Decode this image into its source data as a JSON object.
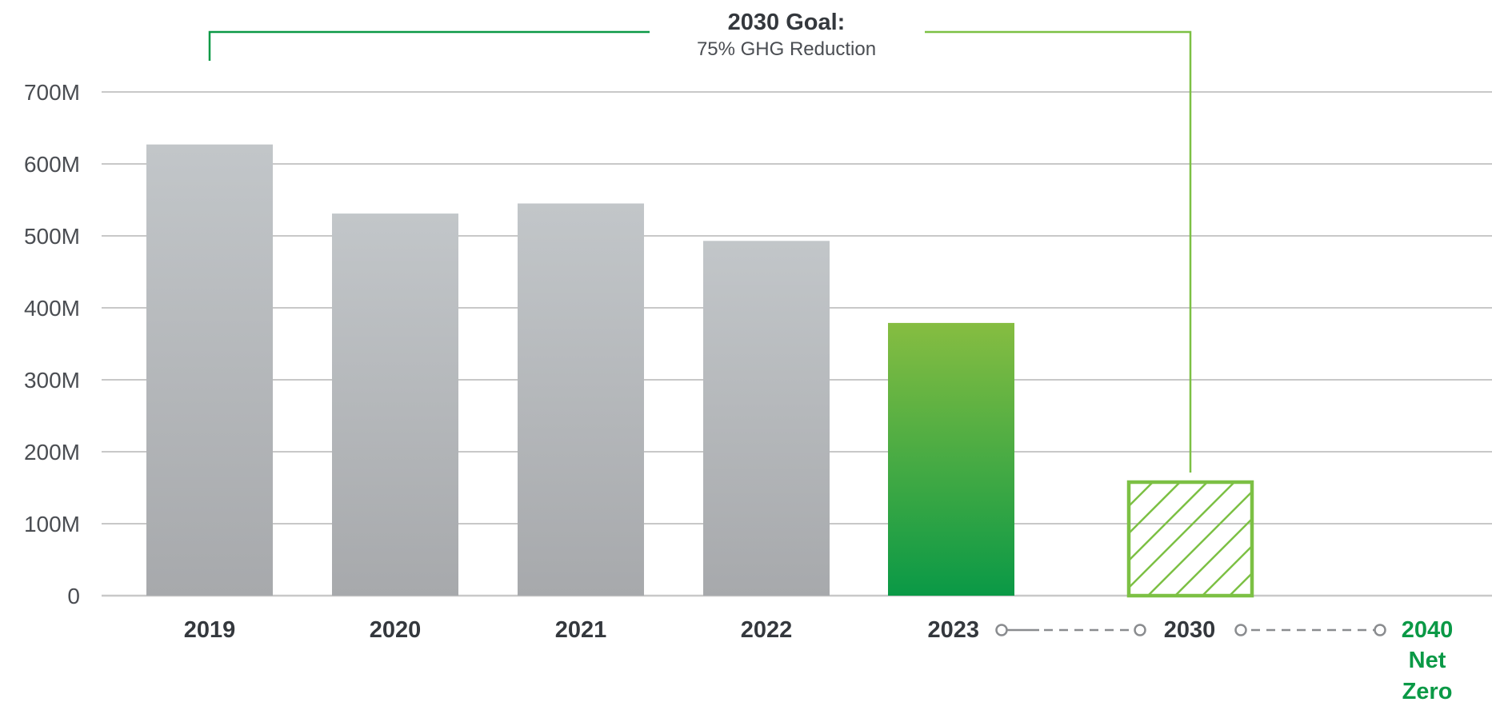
{
  "chart_data": {
    "type": "bar",
    "categories": [
      "2019",
      "2020",
      "2021",
      "2022",
      "2023",
      "2030"
    ],
    "values": [
      627000000,
      531000000,
      545000000,
      493000000,
      379000000,
      160000000
    ],
    "ylim": [
      0,
      700000000
    ],
    "yticks": [
      0,
      100000000,
      200000000,
      300000000,
      400000000,
      500000000,
      600000000,
      700000000
    ],
    "ytick_labels": [
      "0",
      "100M",
      "200M",
      "300M",
      "400M",
      "500M",
      "600M",
      "700M"
    ],
    "grid": true,
    "bar_styles": [
      "gray",
      "gray",
      "gray",
      "gray",
      "green-solid",
      "green-hatched"
    ],
    "timeline_end_label": [
      "2040",
      "Net",
      "Zero"
    ],
    "annotation": {
      "title": "2030 Goal:",
      "subtitle": "75% GHG Reduction",
      "from_category": "2019",
      "to_category": "2030"
    },
    "colors": {
      "gray_bar_top": "#c2c6c9",
      "gray_bar_bottom": "#a7a9ac",
      "green_bar_top": "#86bd41",
      "green_bar_bottom": "#0a9946",
      "goal_green": "#7cc044",
      "net_zero_green": "#0a9946",
      "gridline": "#c8c8c8",
      "timeline": "#8a8c8f"
    }
  }
}
